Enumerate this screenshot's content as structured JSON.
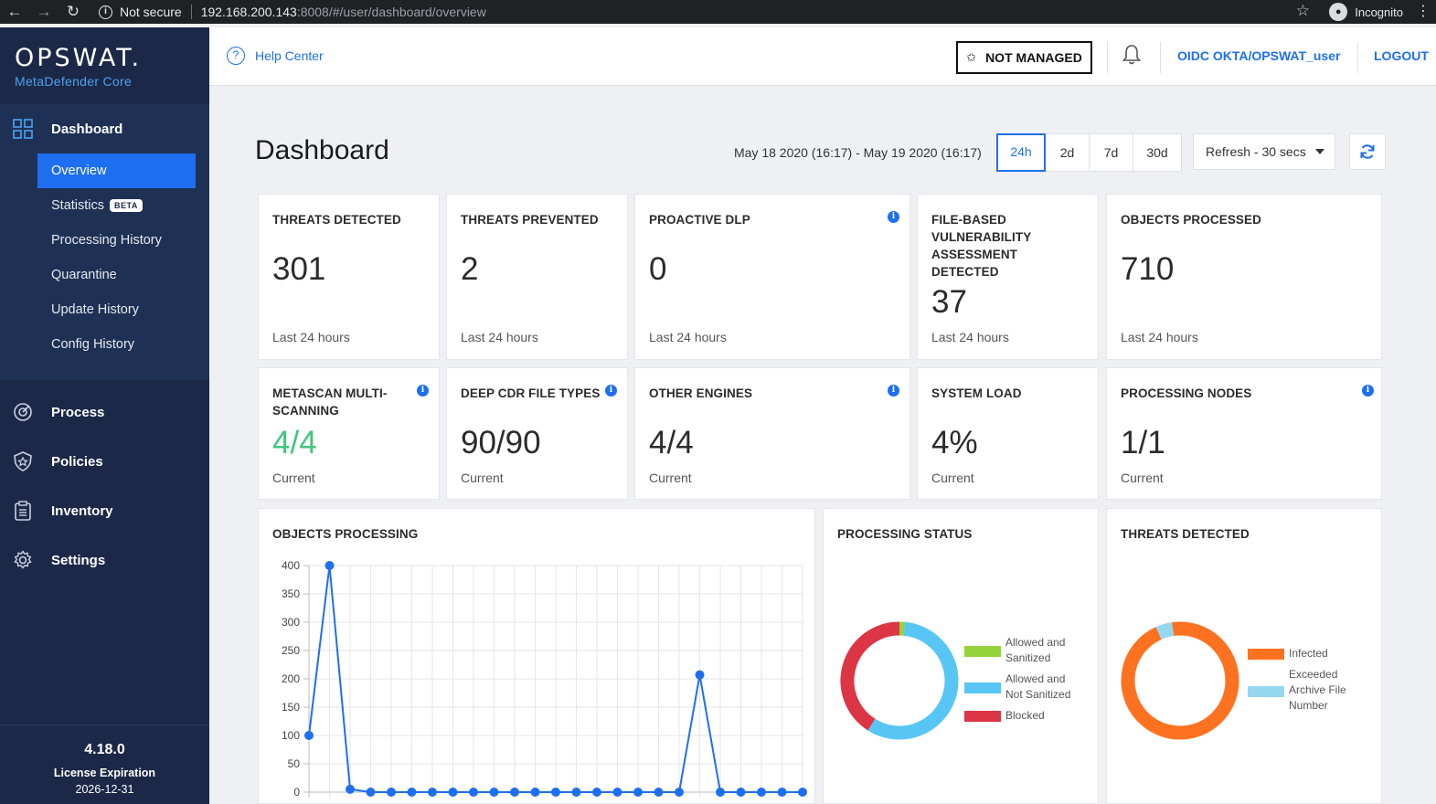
{
  "browser": {
    "security": "Not secure",
    "url_host": "192.168.200.143",
    "url_rest": ":8008/#/user/dashboard/overview",
    "profile": "Incognito"
  },
  "sidebar": {
    "brand": "OPSWAT.",
    "product": "MetaDefender Core",
    "dashboard": "Dashboard",
    "sub_items": [
      {
        "label": "Overview",
        "active": true
      },
      {
        "label": "Statistics",
        "badge": "BETA"
      },
      {
        "label": "Processing History"
      },
      {
        "label": "Quarantine"
      },
      {
        "label": "Update History"
      },
      {
        "label": "Config History"
      }
    ],
    "main_items": [
      {
        "label": "Process",
        "icon": "process-icon"
      },
      {
        "label": "Policies",
        "icon": "shield-icon"
      },
      {
        "label": "Inventory",
        "icon": "clipboard-icon"
      },
      {
        "label": "Settings",
        "icon": "gear-icon"
      }
    ],
    "version": "4.18.0",
    "license_label": "License Expiration",
    "license_date": "2026-12-31"
  },
  "header": {
    "help": "Help Center",
    "managed": "NOT MANAGED",
    "user": "OIDC OKTA/OPSWAT_user",
    "logout": "LOGOUT"
  },
  "main": {
    "title": "Dashboard",
    "range": "May 18 2020 (16:17) - May 19 2020 (16:17)",
    "periods": [
      "24h",
      "2d",
      "7d",
      "30d"
    ],
    "active_period": "24h",
    "refresh": "Refresh - 30 secs"
  },
  "cards_row1": [
    {
      "title": "THREATS DETECTED",
      "value": "301",
      "sub": "Last 24 hours"
    },
    {
      "title": "THREATS PREVENTED",
      "value": "2",
      "sub": "Last 24 hours"
    },
    {
      "title": "PROACTIVE DLP",
      "value": "0",
      "sub": "Last 24 hours",
      "info": true
    },
    {
      "title": "FILE-BASED VULNERABILITY ASSESSMENT DETECTED",
      "value": "37",
      "sub": "Last 24 hours"
    },
    {
      "title": "OBJECTS PROCESSED",
      "value": "710",
      "sub": "Last 24 hours"
    }
  ],
  "cards_row2": [
    {
      "title": "METASCAN MULTI-SCANNING",
      "value": "4/4",
      "sub": "Current",
      "info": true,
      "value_color": "#3ec77b"
    },
    {
      "title": "DEEP CDR FILE TYPES",
      "value": "90/90",
      "sub": "Current",
      "info": true
    },
    {
      "title": "OTHER ENGINES",
      "value": "4/4",
      "sub": "Current",
      "info": true
    },
    {
      "title": "SYSTEM LOAD",
      "value": "4%",
      "sub": "Current"
    },
    {
      "title": "PROCESSING NODES",
      "value": "1/1",
      "sub": "Current",
      "info": true
    }
  ],
  "chart_data": [
    {
      "type": "line",
      "title": "OBJECTS PROCESSING",
      "ylim": [
        0,
        400
      ],
      "yticks": [
        0,
        50,
        100,
        150,
        200,
        250,
        300,
        350,
        400
      ],
      "grid": true,
      "color": "#1e6ff0",
      "series": [
        {
          "values": [
            100,
            400,
            5,
            0,
            0,
            0,
            0,
            0,
            0,
            0,
            0,
            0,
            0,
            0,
            0,
            0,
            0,
            0,
            0,
            207,
            0,
            0,
            0,
            0,
            0
          ]
        }
      ]
    },
    {
      "type": "pie",
      "title": "PROCESSING STATUS",
      "legend_placement": "right",
      "slices": [
        {
          "label": "Allowed and Sanitized",
          "value": 1.5,
          "color": "#97d33a"
        },
        {
          "label": "Allowed and Not Sanitized",
          "value": 57.5,
          "color": "#57c6f5"
        },
        {
          "label": "Blocked",
          "value": 41,
          "color": "#dc3545"
        }
      ]
    },
    {
      "type": "pie",
      "title": "THREATS DETECTED",
      "legend_placement": "right",
      "slices": [
        {
          "label": "Infected",
          "value": 95.5,
          "color": "#fd7220"
        },
        {
          "label": "Exceeded Archive File Number",
          "value": 4.5,
          "color": "#95d8ee"
        }
      ]
    }
  ]
}
